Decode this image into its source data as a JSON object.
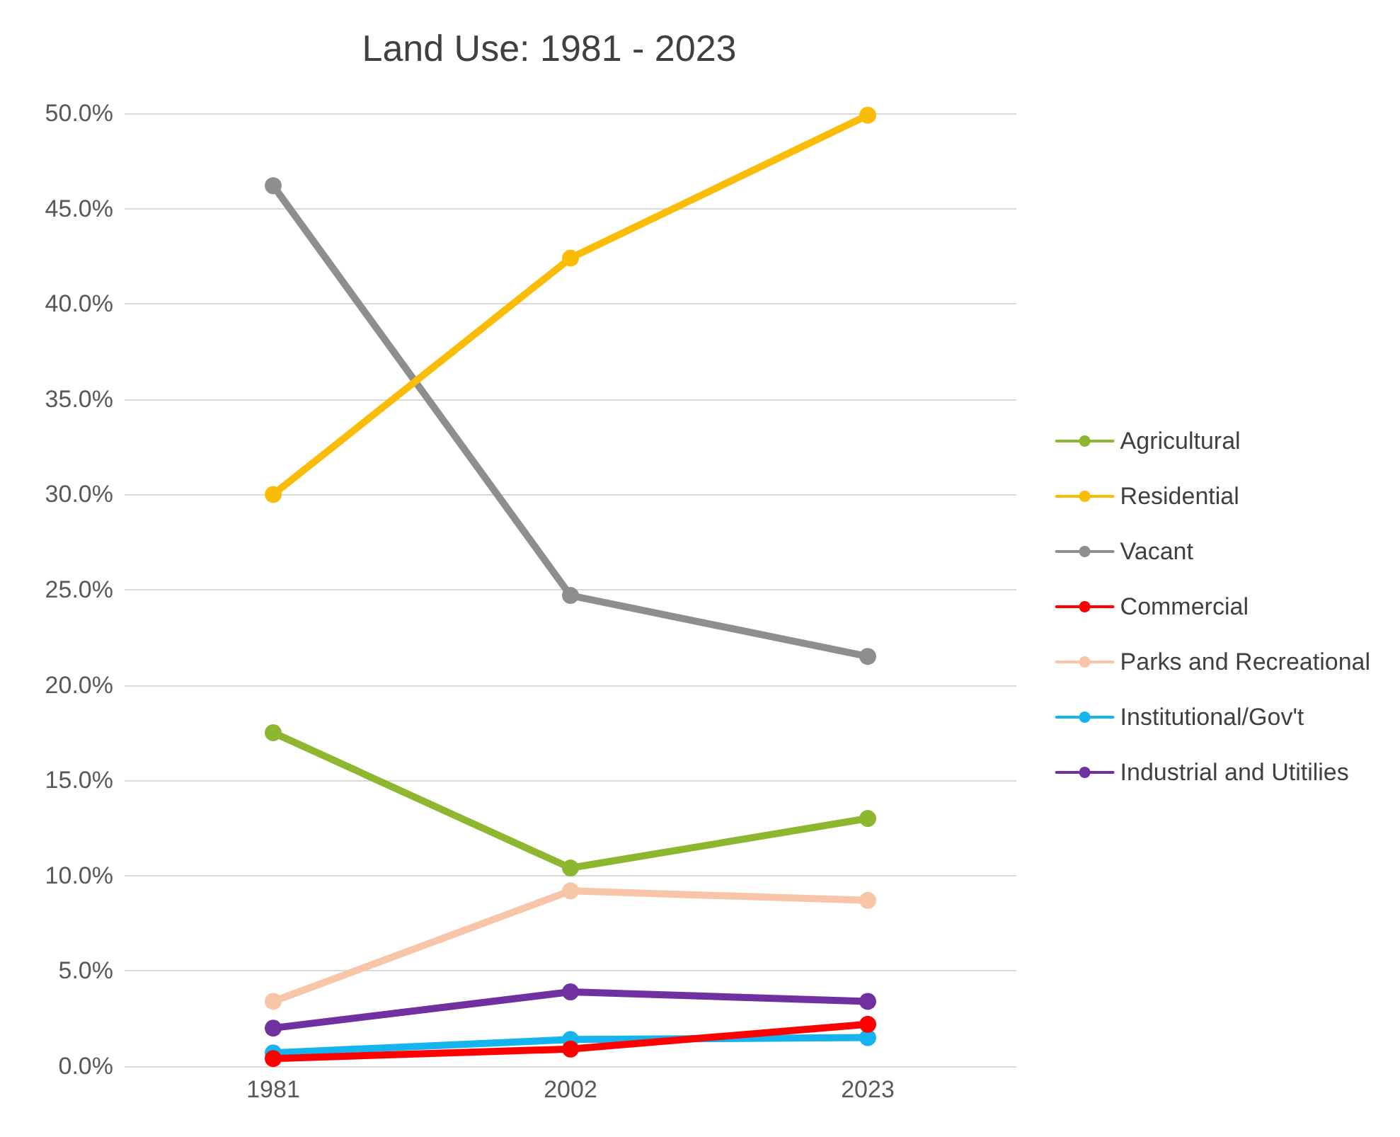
{
  "chart_data": {
    "type": "line",
    "title": "Land Use: 1981 - 2023",
    "categories": [
      "1981",
      "2002",
      "2023"
    ],
    "series": [
      {
        "name": "Agricultural",
        "color": "#8db72f",
        "values": [
          17.5,
          10.4,
          13.0
        ]
      },
      {
        "name": "Residential",
        "color": "#fbbc05",
        "values": [
          30.0,
          42.4,
          49.9
        ]
      },
      {
        "name": "Vacant",
        "color": "#8e8e8e",
        "values": [
          46.2,
          24.7,
          21.5
        ]
      },
      {
        "name": "Commercial",
        "color": "#fe0000",
        "values": [
          0.4,
          0.9,
          2.2
        ]
      },
      {
        "name": "Parks and Recreational",
        "color": "#f8c5a8",
        "values": [
          3.4,
          9.2,
          8.7
        ]
      },
      {
        "name": "Institutional/Gov't",
        "color": "#14b4ee",
        "values": [
          0.7,
          1.4,
          1.5
        ]
      },
      {
        "name": "Industrial and Utitilies",
        "color": "#7030a0",
        "values": [
          2.0,
          3.9,
          3.4
        ]
      }
    ],
    "ylim": [
      0,
      50
    ],
    "yticks": [
      {
        "value": 0,
        "label": "0.0%"
      },
      {
        "value": 5,
        "label": "5.0%"
      },
      {
        "value": 10,
        "label": "10.0%"
      },
      {
        "value": 15,
        "label": "15.0%"
      },
      {
        "value": 20,
        "label": "20.0%"
      },
      {
        "value": 25,
        "label": "25.0%"
      },
      {
        "value": 30,
        "label": "30.0%"
      },
      {
        "value": 35,
        "label": "35.0%"
      },
      {
        "value": 40,
        "label": "40.0%"
      },
      {
        "value": 45,
        "label": "45.0%"
      },
      {
        "value": 50,
        "label": "50.0%"
      }
    ],
    "grid": "y",
    "legend": "right",
    "marker": "circle",
    "line_style": "solid"
  }
}
